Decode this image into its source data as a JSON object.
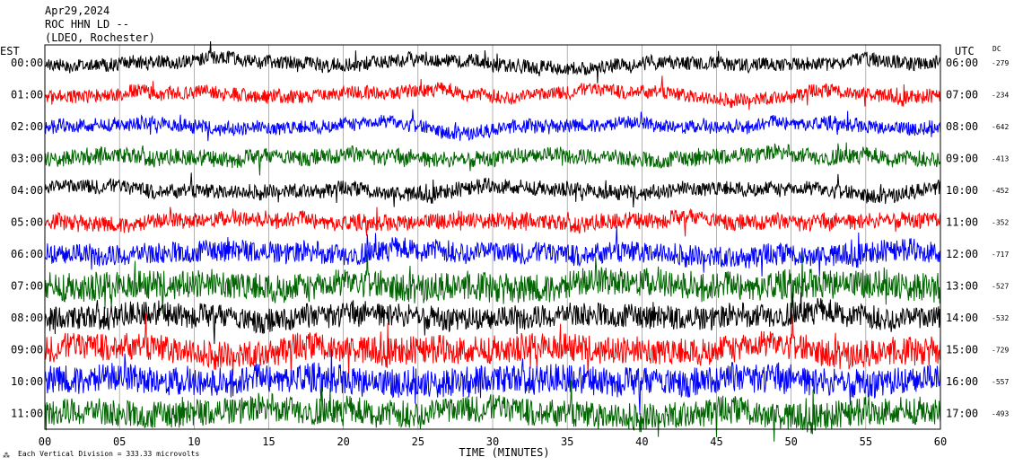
{
  "header": {
    "date": "Apr29,2024",
    "station": "ROC HHN LD --",
    "network": "(LDEO, Rochester)"
  },
  "left_axis_title": "EST",
  "right_axis_title": "UTC",
  "dc_title": "DC",
  "footer": {
    "note": "Each Vertical Division = 333.33 microvolts"
  },
  "colors": {
    "cycle": [
      "#000000",
      "#ff0000",
      "#0000ff",
      "#006400"
    ],
    "frame": "#000000",
    "grid": "#808080"
  },
  "chart_data": {
    "type": "line",
    "title": "",
    "xlabel": "TIME (MINUTES)",
    "x_ticks": [
      "00",
      "05",
      "10",
      "15",
      "20",
      "25",
      "30",
      "35",
      "40",
      "45",
      "50",
      "55",
      "60"
    ],
    "xlim": [
      0,
      60
    ],
    "rows": [
      {
        "est": "00:00",
        "utc": "06:00",
        "dc": "-279",
        "color": "#000000",
        "activity": 0.35
      },
      {
        "est": "01:00",
        "utc": "07:00",
        "dc": "-234",
        "color": "#ff0000",
        "activity": 0.35
      },
      {
        "est": "02:00",
        "utc": "08:00",
        "dc": "-642",
        "color": "#0000ff",
        "activity": 0.35
      },
      {
        "est": "03:00",
        "utc": "09:00",
        "dc": "-413",
        "color": "#006400",
        "activity": 0.45
      },
      {
        "est": "04:00",
        "utc": "10:00",
        "dc": "-452",
        "color": "#000000",
        "activity": 0.4
      },
      {
        "est": "05:00",
        "utc": "11:00",
        "dc": "-352",
        "color": "#ff0000",
        "activity": 0.45
      },
      {
        "est": "06:00",
        "utc": "12:00",
        "dc": "-717",
        "color": "#0000ff",
        "activity": 0.7
      },
      {
        "est": "07:00",
        "utc": "13:00",
        "dc": "-527",
        "color": "#006400",
        "activity": 1.0
      },
      {
        "est": "08:00",
        "utc": "14:00",
        "dc": "-532",
        "color": "#000000",
        "activity": 0.8
      },
      {
        "est": "09:00",
        "utc": "15:00",
        "dc": "-729",
        "color": "#ff0000",
        "activity": 0.95
      },
      {
        "est": "10:00",
        "utc": "16:00",
        "dc": "-557",
        "color": "#0000ff",
        "activity": 1.0
      },
      {
        "est": "11:00",
        "utc": "17:00",
        "dc": "-493",
        "color": "#006400",
        "activity": 0.95
      }
    ]
  }
}
